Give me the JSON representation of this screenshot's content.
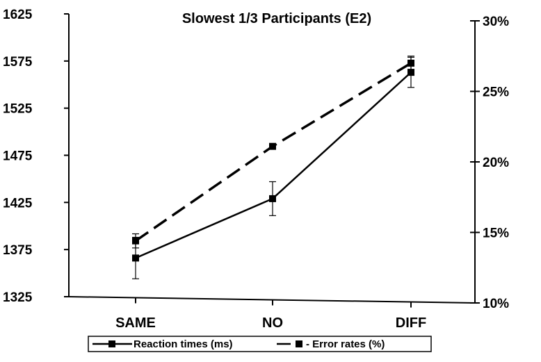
{
  "chart_data": {
    "type": "line",
    "title": "Slowest 1/3 Participants (E2)",
    "categories": [
      "SAME",
      "NO",
      "DIFF"
    ],
    "y_left": {
      "ticks": [
        "1325",
        "1375",
        "1425",
        "1475",
        "1525",
        "1575",
        "1625"
      ],
      "ylim": [
        1325,
        1625
      ]
    },
    "y_right": {
      "ticks": [
        "10%",
        "15%",
        "20%",
        "25%",
        "30%"
      ],
      "ylim": [
        10,
        30
      ]
    },
    "series": [
      {
        "name": "Reaction times (ms)",
        "axis": "left",
        "values": [
          1366,
          1429,
          1563
        ],
        "error": [
          22,
          18,
          16
        ],
        "line_style": "solid"
      },
      {
        "name": "- Error rates (%)",
        "axis": "right",
        "values": [
          14.4,
          21.1,
          27.0
        ],
        "error": [
          0.5,
          0,
          0.5
        ],
        "line_style": "dashed"
      }
    ],
    "legend_position": "bottom",
    "grid": false,
    "colors": {
      "line": "#000000",
      "background": "#ffffff"
    }
  }
}
